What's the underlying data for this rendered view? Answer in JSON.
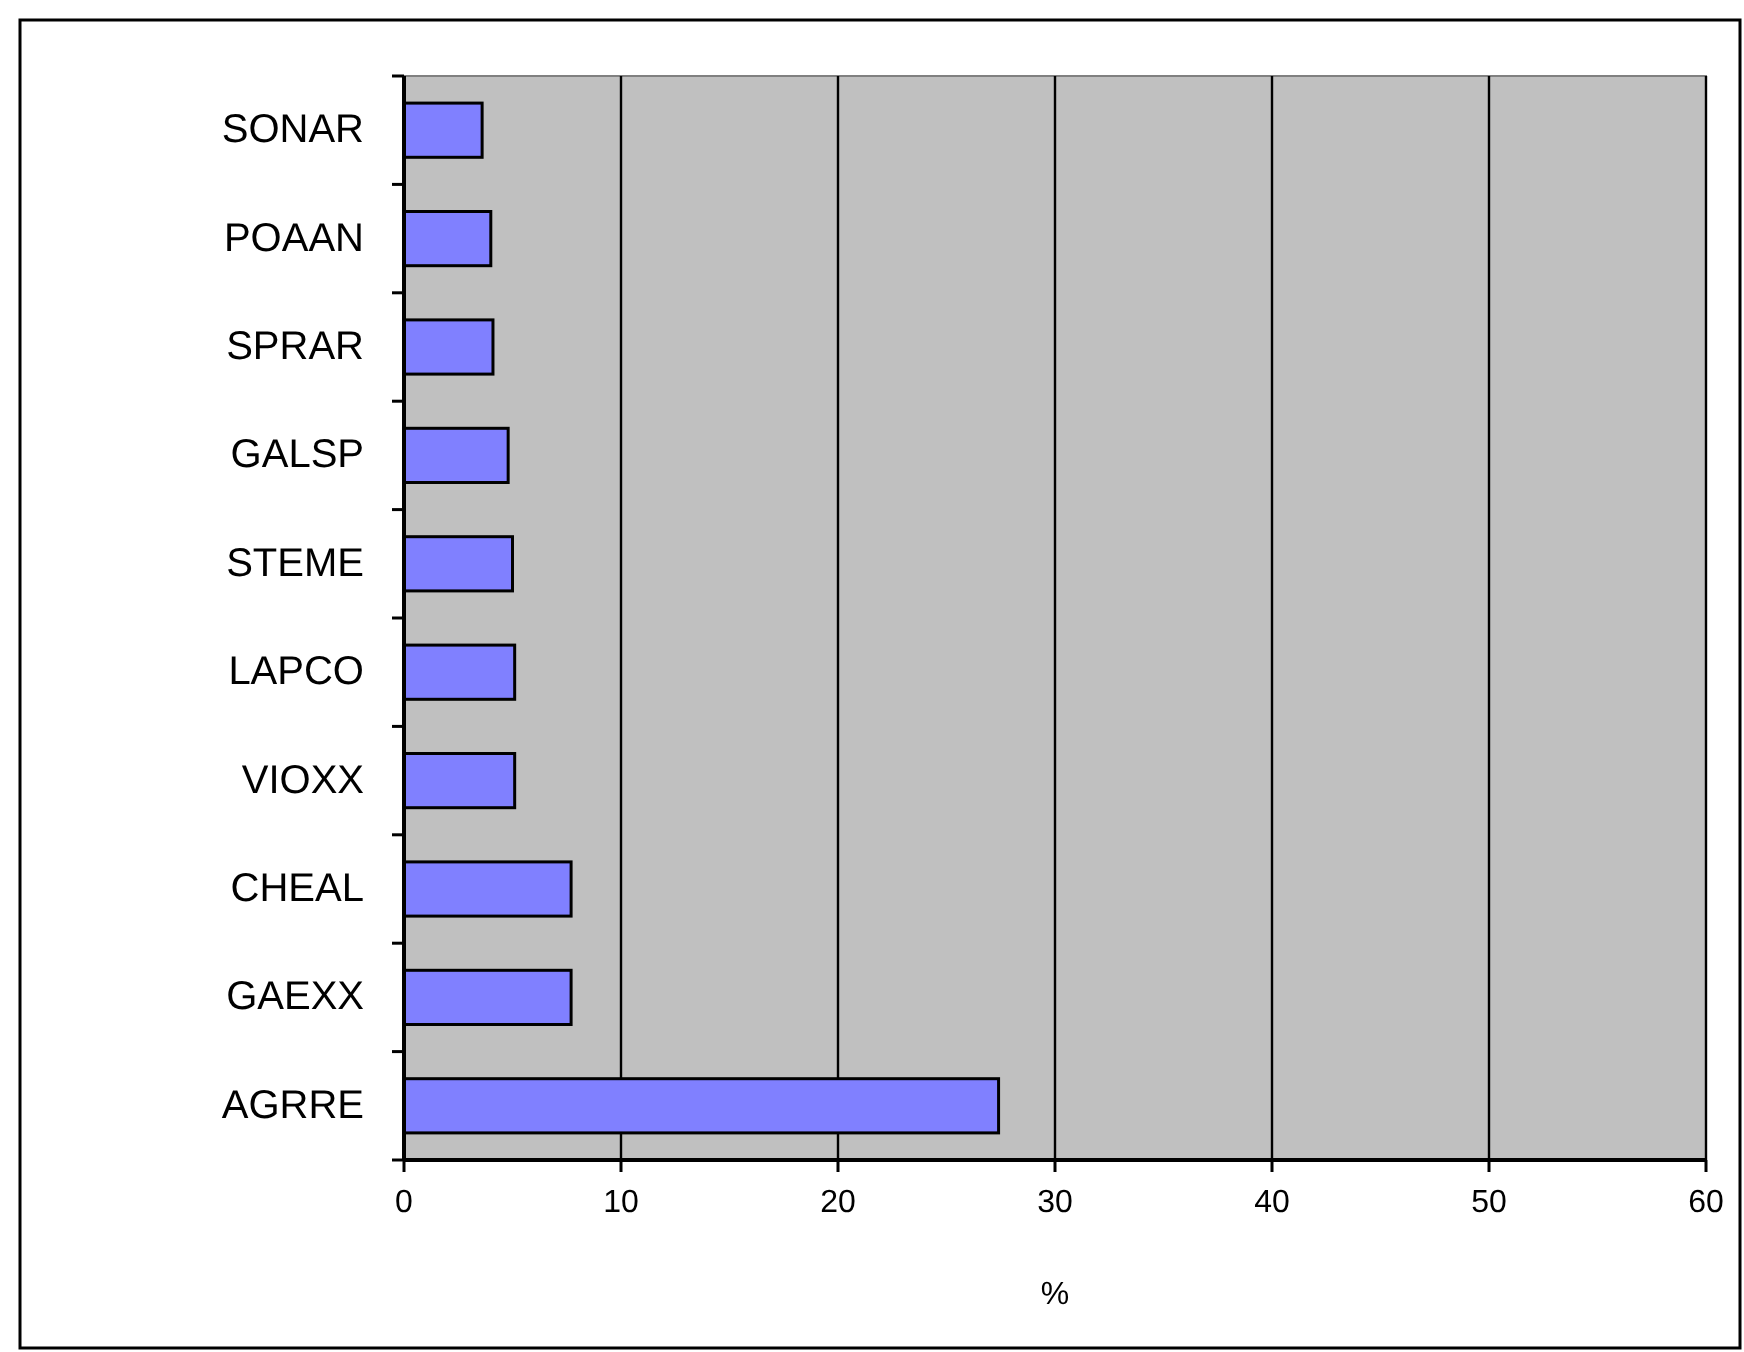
{
  "chart_data": {
    "type": "bar",
    "orientation": "horizontal",
    "categories": [
      "SONAR",
      "POAAN",
      "SPRAR",
      "GALSP",
      "STEME",
      "LAPCO",
      "VIOXX",
      "CHEAL",
      "GAEXX",
      "AGRRE"
    ],
    "values": [
      3.6,
      4.0,
      4.1,
      4.8,
      5.0,
      5.1,
      5.1,
      7.7,
      7.7,
      27.4
    ],
    "color": "#8080ff",
    "xlim": [
      0,
      60
    ],
    "xticks": [
      0,
      10,
      20,
      30,
      40,
      50,
      60
    ],
    "xlabel": "%",
    "grid": "x"
  }
}
